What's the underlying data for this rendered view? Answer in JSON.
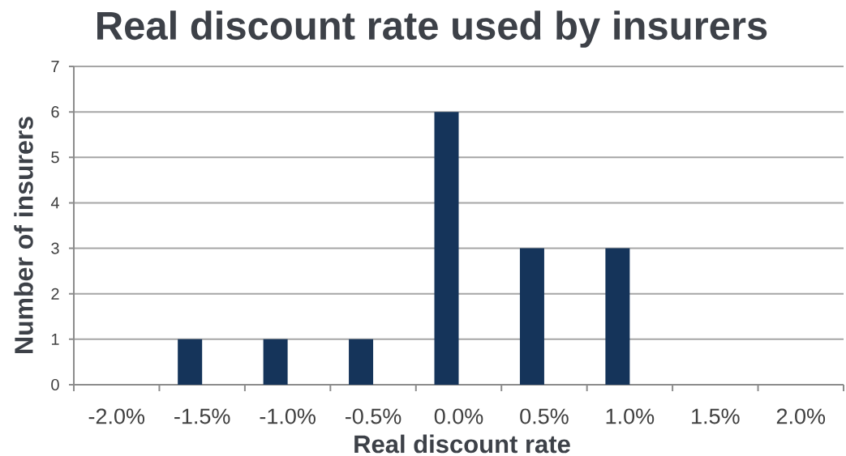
{
  "chart_data": {
    "type": "bar",
    "title": "Real discount rate used by insurers",
    "xlabel": "Real discount rate",
    "ylabel": "Number of insurers",
    "categories": [
      "-2.0%",
      "-1.5%",
      "-1.0%",
      "-0.5%",
      "0.0%",
      "0.5%",
      "1.0%",
      "1.5%",
      "2.0%"
    ],
    "values": [
      0,
      1,
      1,
      1,
      6,
      3,
      3,
      0,
      0
    ],
    "color": "#15345a",
    "ylim": [
      0,
      7
    ],
    "yticks": [
      0,
      1,
      2,
      3,
      4,
      5,
      6,
      7
    ],
    "grid": "y"
  }
}
